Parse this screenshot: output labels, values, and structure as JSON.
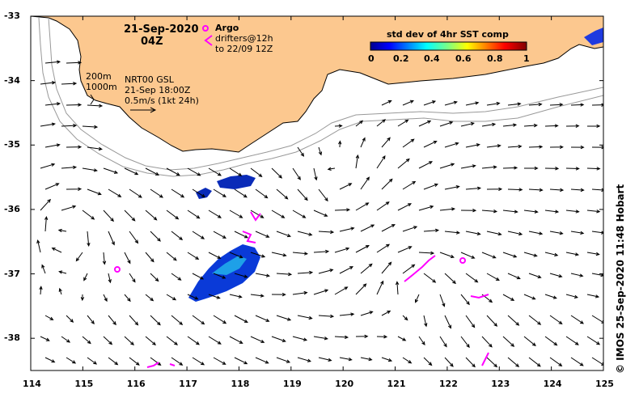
{
  "header": {
    "date": "21-Sep-2020",
    "time": "04Z"
  },
  "legend": {
    "argo_label": "Argo",
    "drifters_line1": "drifters@12h",
    "drifters_line2": "to 22/09 12Z",
    "argo_color": "#ff00ff"
  },
  "contours": {
    "line1": "200m",
    "line2": "1000m"
  },
  "current_info": {
    "line1": "NRT00 GSL",
    "line2": "21-Sep 18:00Z",
    "line3": "0.5m/s (1kt 24h)"
  },
  "colorbar": {
    "title": "std dev of 4hr SST comp",
    "ticks": [
      "0",
      "0.2",
      "0.4",
      "0.6",
      "0.8",
      "1"
    ],
    "min": 0,
    "max": 1
  },
  "axes": {
    "x_ticks": [
      "114",
      "115",
      "116",
      "117",
      "118",
      "119",
      "120",
      "121",
      "122",
      "123",
      "124",
      "125"
    ],
    "y_ticks": [
      "-33",
      "-34",
      "-35",
      "-36",
      "-37",
      "-38"
    ],
    "lon_range": [
      114,
      125
    ],
    "lat_range": [
      -38.5,
      -33
    ]
  },
  "credit": "© IMOS 25-Sep-2020 11:48 Hobart",
  "colors": {
    "land": "#fcc88f",
    "contour": "#999999",
    "argo": "#ff00ff"
  }
}
